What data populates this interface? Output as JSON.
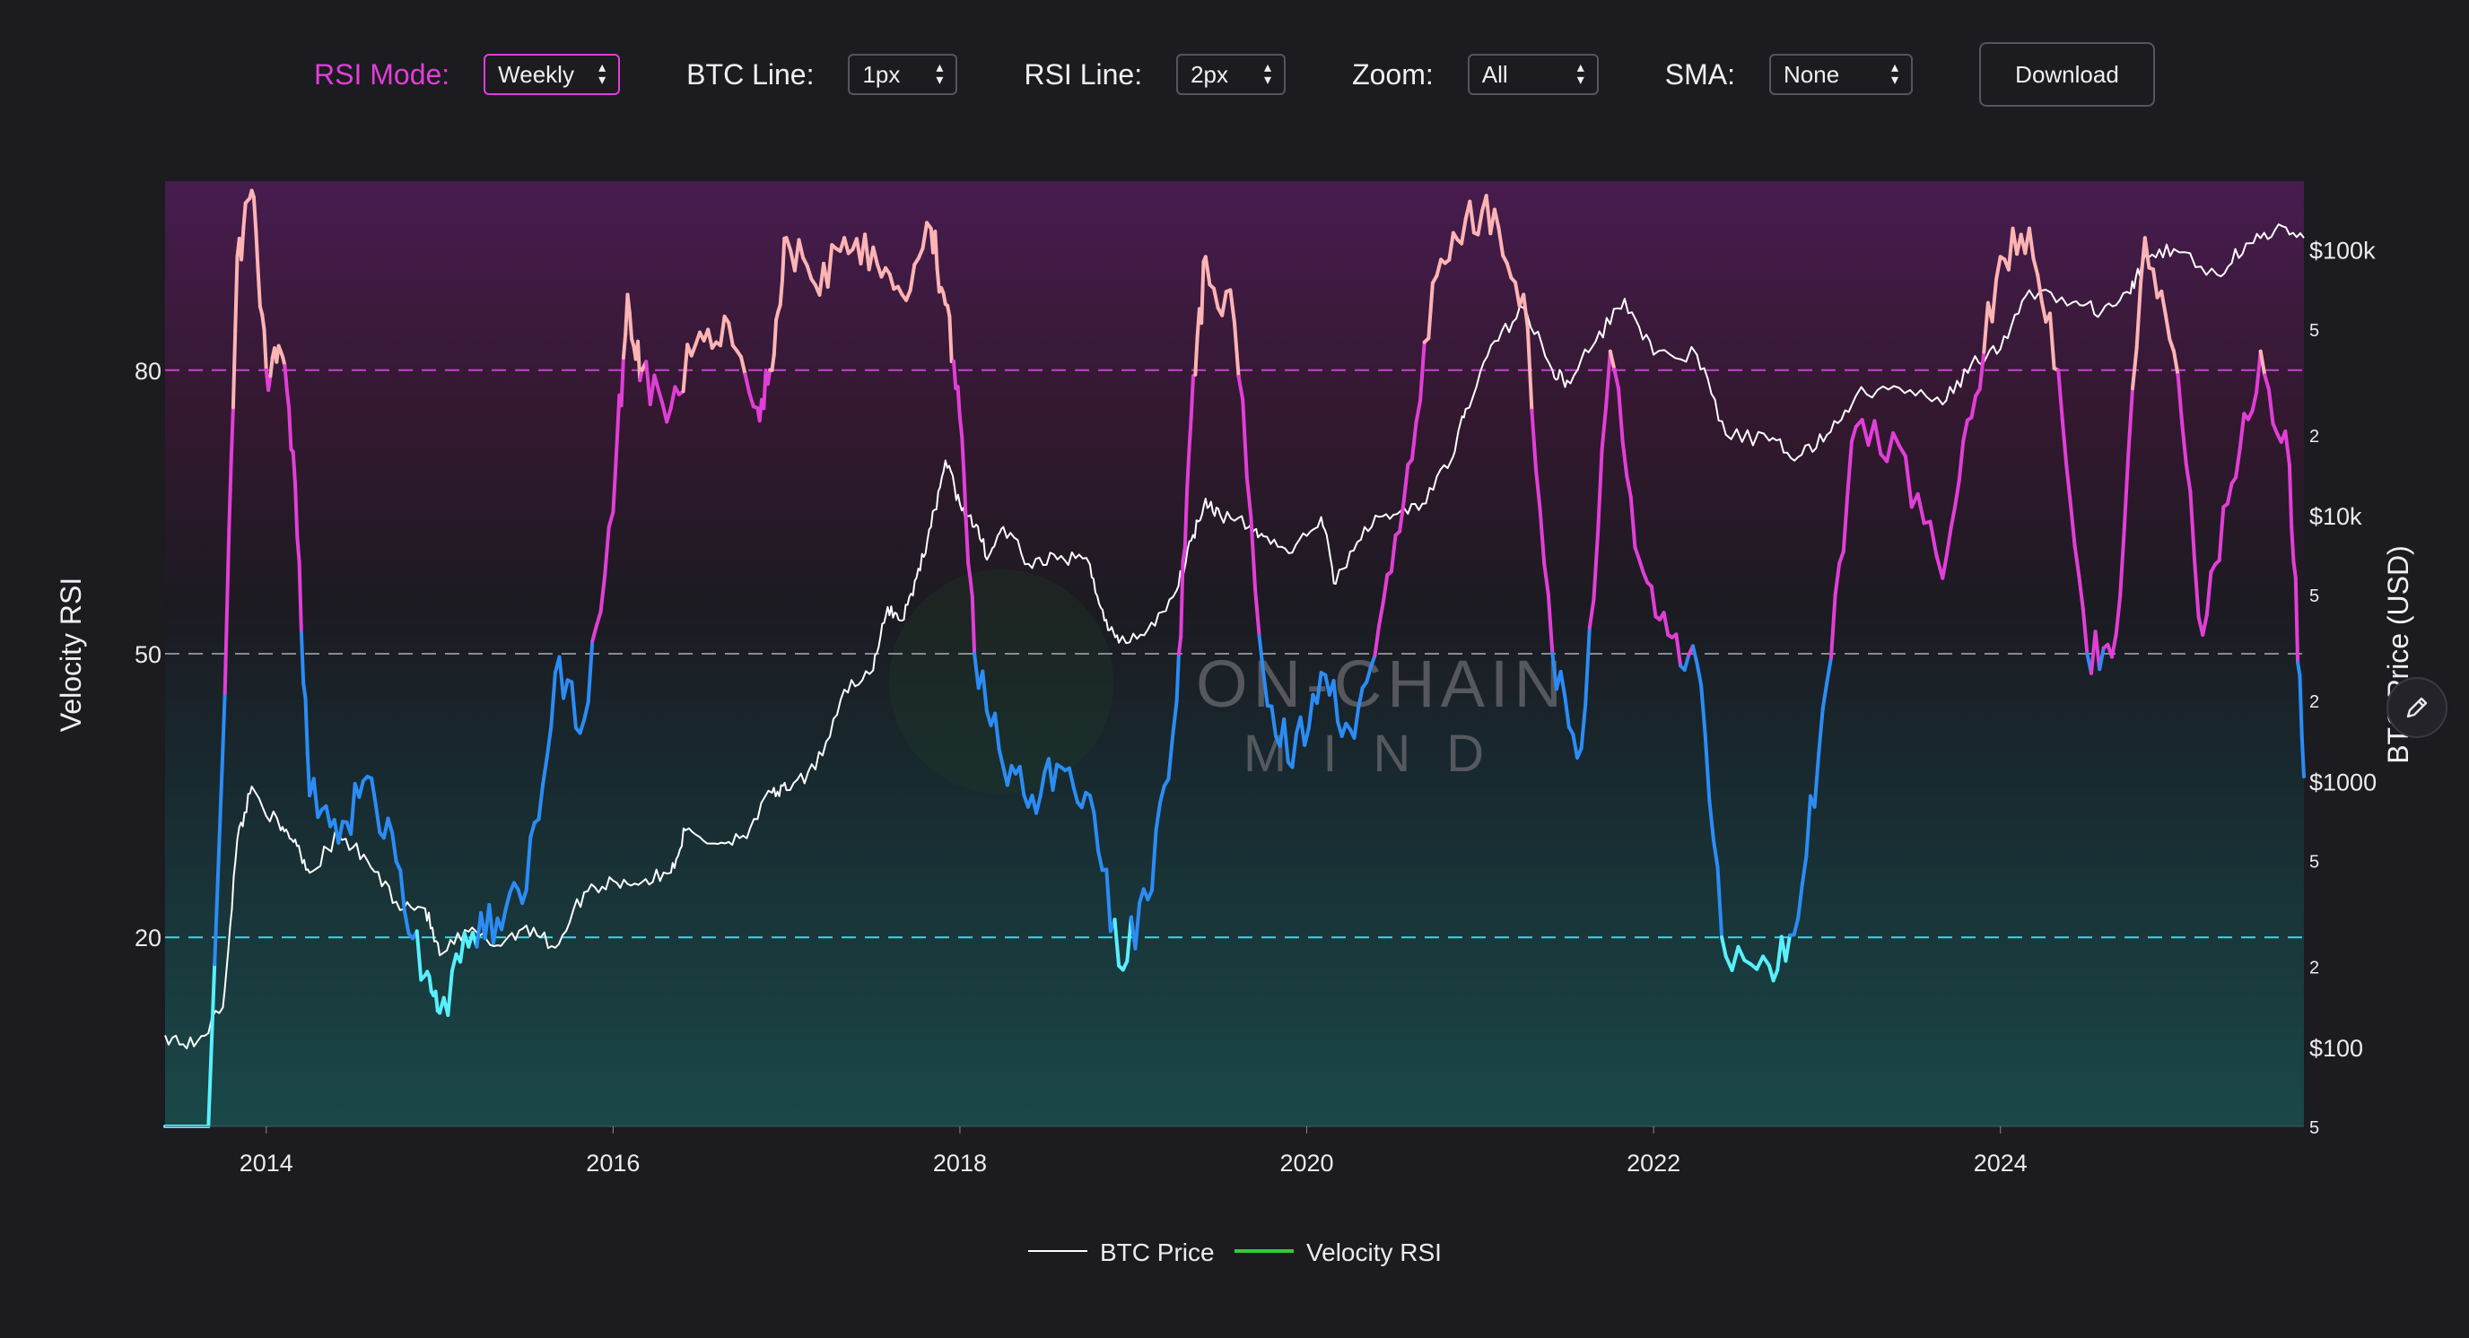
{
  "controls": {
    "rsi_mode": {
      "label": "RSI Mode:",
      "value": "Weekly"
    },
    "btc_line": {
      "label": "BTC Line:",
      "value": "1px"
    },
    "rsi_line": {
      "label": "RSI Line:",
      "value": "2px"
    },
    "zoom": {
      "label": "Zoom:",
      "value": "All"
    },
    "sma": {
      "label": "SMA:",
      "value": "None"
    },
    "download_label": "Download"
  },
  "colors": {
    "accent": "#e23ed8",
    "overbought_line": "#c93fd6",
    "oversold_line": "#3fd6e0",
    "midline": "#8a8a92",
    "rsi_high": "#ffb4b4",
    "rsi_upper": "#e23ed8",
    "rsi_lower": "#2b8cf5",
    "rsi_low": "#58f0ff",
    "btc_line": "#ffffff",
    "legend_rsi": "#2fd02f"
  },
  "watermark": {
    "line1": "ON-CHAIN",
    "line2": "MIND"
  },
  "edit_icon": "pencil-icon",
  "chart_data": {
    "type": "line",
    "x_axis": {
      "ticks": [
        "2014",
        "2016",
        "2018",
        "2020",
        "2022",
        "2024"
      ],
      "range": [
        "2013-06",
        "2025-10"
      ]
    },
    "y_left": {
      "label": "Velocity RSI",
      "ticks": [
        "20",
        "50",
        "80"
      ],
      "range": [
        0,
        100
      ],
      "reference_lines": [
        80,
        50,
        20
      ]
    },
    "y_right": {
      "label": "BTC Price (USD)",
      "scale": "log",
      "ticks": [
        "$100k",
        "5",
        "2",
        "$10k",
        "5",
        "2",
        "$1000",
        "5",
        "2",
        "$100",
        "5"
      ],
      "range": [
        50,
        180000
      ]
    },
    "legend": {
      "position": "bottom-center",
      "items": [
        "BTC Price",
        "Velocity RSI"
      ]
    },
    "series": [
      {
        "name": "BTC Price",
        "axis": "right",
        "points": [
          [
            "2013-06",
            110
          ],
          [
            "2013-08",
            100
          ],
          [
            "2013-10",
            140
          ],
          [
            "2013-11",
            600
          ],
          [
            "2013-12",
            950
          ],
          [
            "2014-02",
            650
          ],
          [
            "2014-03",
            600
          ],
          [
            "2014-04",
            450
          ],
          [
            "2014-06",
            620
          ],
          [
            "2014-08",
            500
          ],
          [
            "2014-10",
            350
          ],
          [
            "2014-12",
            330
          ],
          [
            "2015-01",
            220
          ],
          [
            "2015-03",
            270
          ],
          [
            "2015-05",
            240
          ],
          [
            "2015-07",
            285
          ],
          [
            "2015-09",
            235
          ],
          [
            "2015-11",
            380
          ],
          [
            "2016-01",
            420
          ],
          [
            "2016-03",
            415
          ],
          [
            "2016-05",
            450
          ],
          [
            "2016-06",
            650
          ],
          [
            "2016-08",
            580
          ],
          [
            "2016-10",
            620
          ],
          [
            "2016-12",
            900
          ],
          [
            "2017-01",
            920
          ],
          [
            "2017-03",
            1100
          ],
          [
            "2017-05",
            2200
          ],
          [
            "2017-07",
            2600
          ],
          [
            "2017-08",
            4500
          ],
          [
            "2017-09",
            4000
          ],
          [
            "2017-10",
            5800
          ],
          [
            "2017-11",
            9000
          ],
          [
            "2017-12",
            16000
          ],
          [
            "2018-01",
            11000
          ],
          [
            "2018-02",
            9000
          ],
          [
            "2018-03",
            7000
          ],
          [
            "2018-04",
            9000
          ],
          [
            "2018-06",
            6300
          ],
          [
            "2018-08",
            7000
          ],
          [
            "2018-10",
            6500
          ],
          [
            "2018-11",
            4000
          ],
          [
            "2018-12",
            3300
          ],
          [
            "2019-02",
            3700
          ],
          [
            "2019-04",
            5200
          ],
          [
            "2019-05",
            8000
          ],
          [
            "2019-06",
            11500
          ],
          [
            "2019-07",
            10000
          ],
          [
            "2019-09",
            9000
          ],
          [
            "2019-10",
            8300
          ],
          [
            "2019-12",
            7200
          ],
          [
            "2020-02",
            9800
          ],
          [
            "2020-03",
            5500
          ],
          [
            "2020-05",
            9000
          ],
          [
            "2020-07",
            10000
          ],
          [
            "2020-09",
            11000
          ],
          [
            "2020-11",
            16000
          ],
          [
            "2020-12",
            25000
          ],
          [
            "2021-02",
            45000
          ],
          [
            "2021-04",
            60000
          ],
          [
            "2021-06",
            35000
          ],
          [
            "2021-07",
            32000
          ],
          [
            "2021-09",
            45000
          ],
          [
            "2021-11",
            65000
          ],
          [
            "2022-01",
            40000
          ],
          [
            "2022-04",
            40000
          ],
          [
            "2022-06",
            20000
          ],
          [
            "2022-09",
            19000
          ],
          [
            "2022-11",
            16500
          ],
          [
            "2023-01",
            20000
          ],
          [
            "2023-03",
            28000
          ],
          [
            "2023-06",
            30000
          ],
          [
            "2023-09",
            26000
          ],
          [
            "2023-11",
            37000
          ],
          [
            "2024-01",
            42000
          ],
          [
            "2024-03",
            70000
          ],
          [
            "2024-06",
            63000
          ],
          [
            "2024-08",
            58000
          ],
          [
            "2024-10",
            68000
          ],
          [
            "2024-11",
            95000
          ],
          [
            "2025-01",
            100000
          ],
          [
            "2025-04",
            80000
          ],
          [
            "2025-06",
            105000
          ],
          [
            "2025-08",
            118000
          ],
          [
            "2025-10",
            110000
          ]
        ]
      },
      {
        "name": "Velocity RSI",
        "axis": "left",
        "points": [
          [
            "2013-06",
            0
          ],
          [
            "2013-09",
            0
          ],
          [
            "2013-10",
            40
          ],
          [
            "2013-11",
            92
          ],
          [
            "2013-12",
            99
          ],
          [
            "2014-01",
            80
          ],
          [
            "2014-02",
            82
          ],
          [
            "2014-03",
            68
          ],
          [
            "2014-04",
            35
          ],
          [
            "2014-06",
            30
          ],
          [
            "2014-08",
            37
          ],
          [
            "2014-10",
            28
          ],
          [
            "2014-12",
            16
          ],
          [
            "2015-01",
            12
          ],
          [
            "2015-03",
            19
          ],
          [
            "2015-05",
            22
          ],
          [
            "2015-07",
            25
          ],
          [
            "2015-09",
            48
          ],
          [
            "2015-11",
            43
          ],
          [
            "2016-01",
            65
          ],
          [
            "2016-02",
            88
          ],
          [
            "2016-03",
            80
          ],
          [
            "2016-05",
            76
          ],
          [
            "2016-07",
            84
          ],
          [
            "2016-09",
            85
          ],
          [
            "2016-11",
            76
          ],
          [
            "2016-12",
            80
          ],
          [
            "2017-01",
            94
          ],
          [
            "2017-03",
            89
          ],
          [
            "2017-05",
            94
          ],
          [
            "2017-07",
            93
          ],
          [
            "2017-09",
            88
          ],
          [
            "2017-11",
            95
          ],
          [
            "2017-12",
            87
          ],
          [
            "2018-01",
            75
          ],
          [
            "2018-02",
            50
          ],
          [
            "2018-04",
            38
          ],
          [
            "2018-06",
            35
          ],
          [
            "2018-08",
            38
          ],
          [
            "2018-10",
            35
          ],
          [
            "2018-12",
            17
          ],
          [
            "2019-02",
            24
          ],
          [
            "2019-04",
            45
          ],
          [
            "2019-05",
            75
          ],
          [
            "2019-06",
            92
          ],
          [
            "2019-08",
            85
          ],
          [
            "2019-10",
            48
          ],
          [
            "2019-12",
            38
          ],
          [
            "2020-02",
            48
          ],
          [
            "2020-04",
            42
          ],
          [
            "2020-06",
            53
          ],
          [
            "2020-08",
            70
          ],
          [
            "2020-10",
            90
          ],
          [
            "2020-12",
            96
          ],
          [
            "2021-02",
            97
          ],
          [
            "2021-04",
            88
          ],
          [
            "2021-06",
            50
          ],
          [
            "2021-08",
            40
          ],
          [
            "2021-10",
            82
          ],
          [
            "2021-12",
            60
          ],
          [
            "2022-02",
            52
          ],
          [
            "2022-04",
            49
          ],
          [
            "2022-06",
            18
          ],
          [
            "2022-09",
            17
          ],
          [
            "2022-11",
            22
          ],
          [
            "2023-01",
            47
          ],
          [
            "2023-03",
            74
          ],
          [
            "2023-06",
            72
          ],
          [
            "2023-09",
            58
          ],
          [
            "2023-11",
            75
          ],
          [
            "2024-01",
            92
          ],
          [
            "2024-03",
            95
          ],
          [
            "2024-05",
            80
          ],
          [
            "2024-07",
            50
          ],
          [
            "2024-09",
            52
          ],
          [
            "2024-11",
            94
          ],
          [
            "2025-01",
            82
          ],
          [
            "2025-03",
            52
          ],
          [
            "2025-05",
            68
          ],
          [
            "2025-07",
            82
          ],
          [
            "2025-09",
            70
          ],
          [
            "2025-10",
            37
          ]
        ]
      }
    ]
  }
}
